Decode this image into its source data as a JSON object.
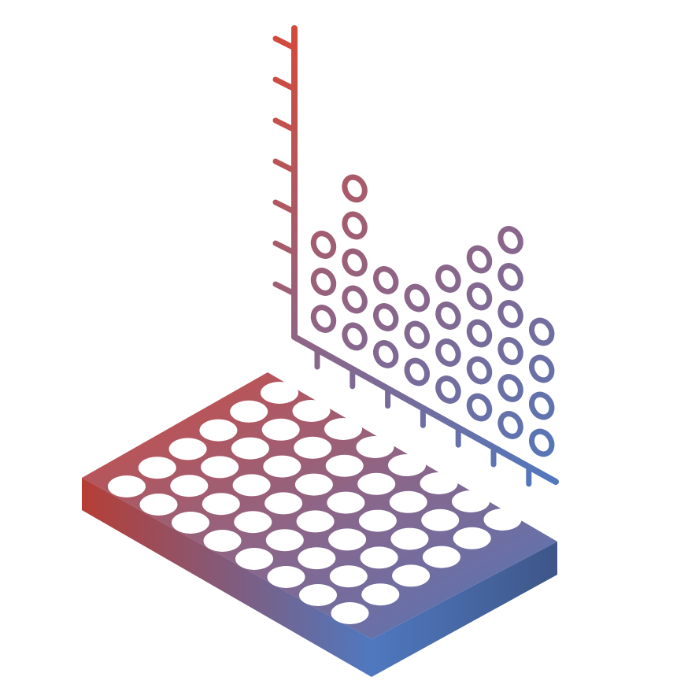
{
  "illustration": {
    "subject": "microplate-and-chart-icon",
    "colors": {
      "start": "#d24a3c",
      "mid": "#8e6586",
      "end": "#4f78bf",
      "plate_side_dark": "#3e5688",
      "plate_front_dark": "#b63e36",
      "well": "#ffffff"
    },
    "plate": {
      "rows": 6,
      "columns": 8
    },
    "dot_chart": {
      "column_heights": [
        3,
        5,
        3,
        3,
        4,
        5,
        6,
        4
      ]
    }
  }
}
